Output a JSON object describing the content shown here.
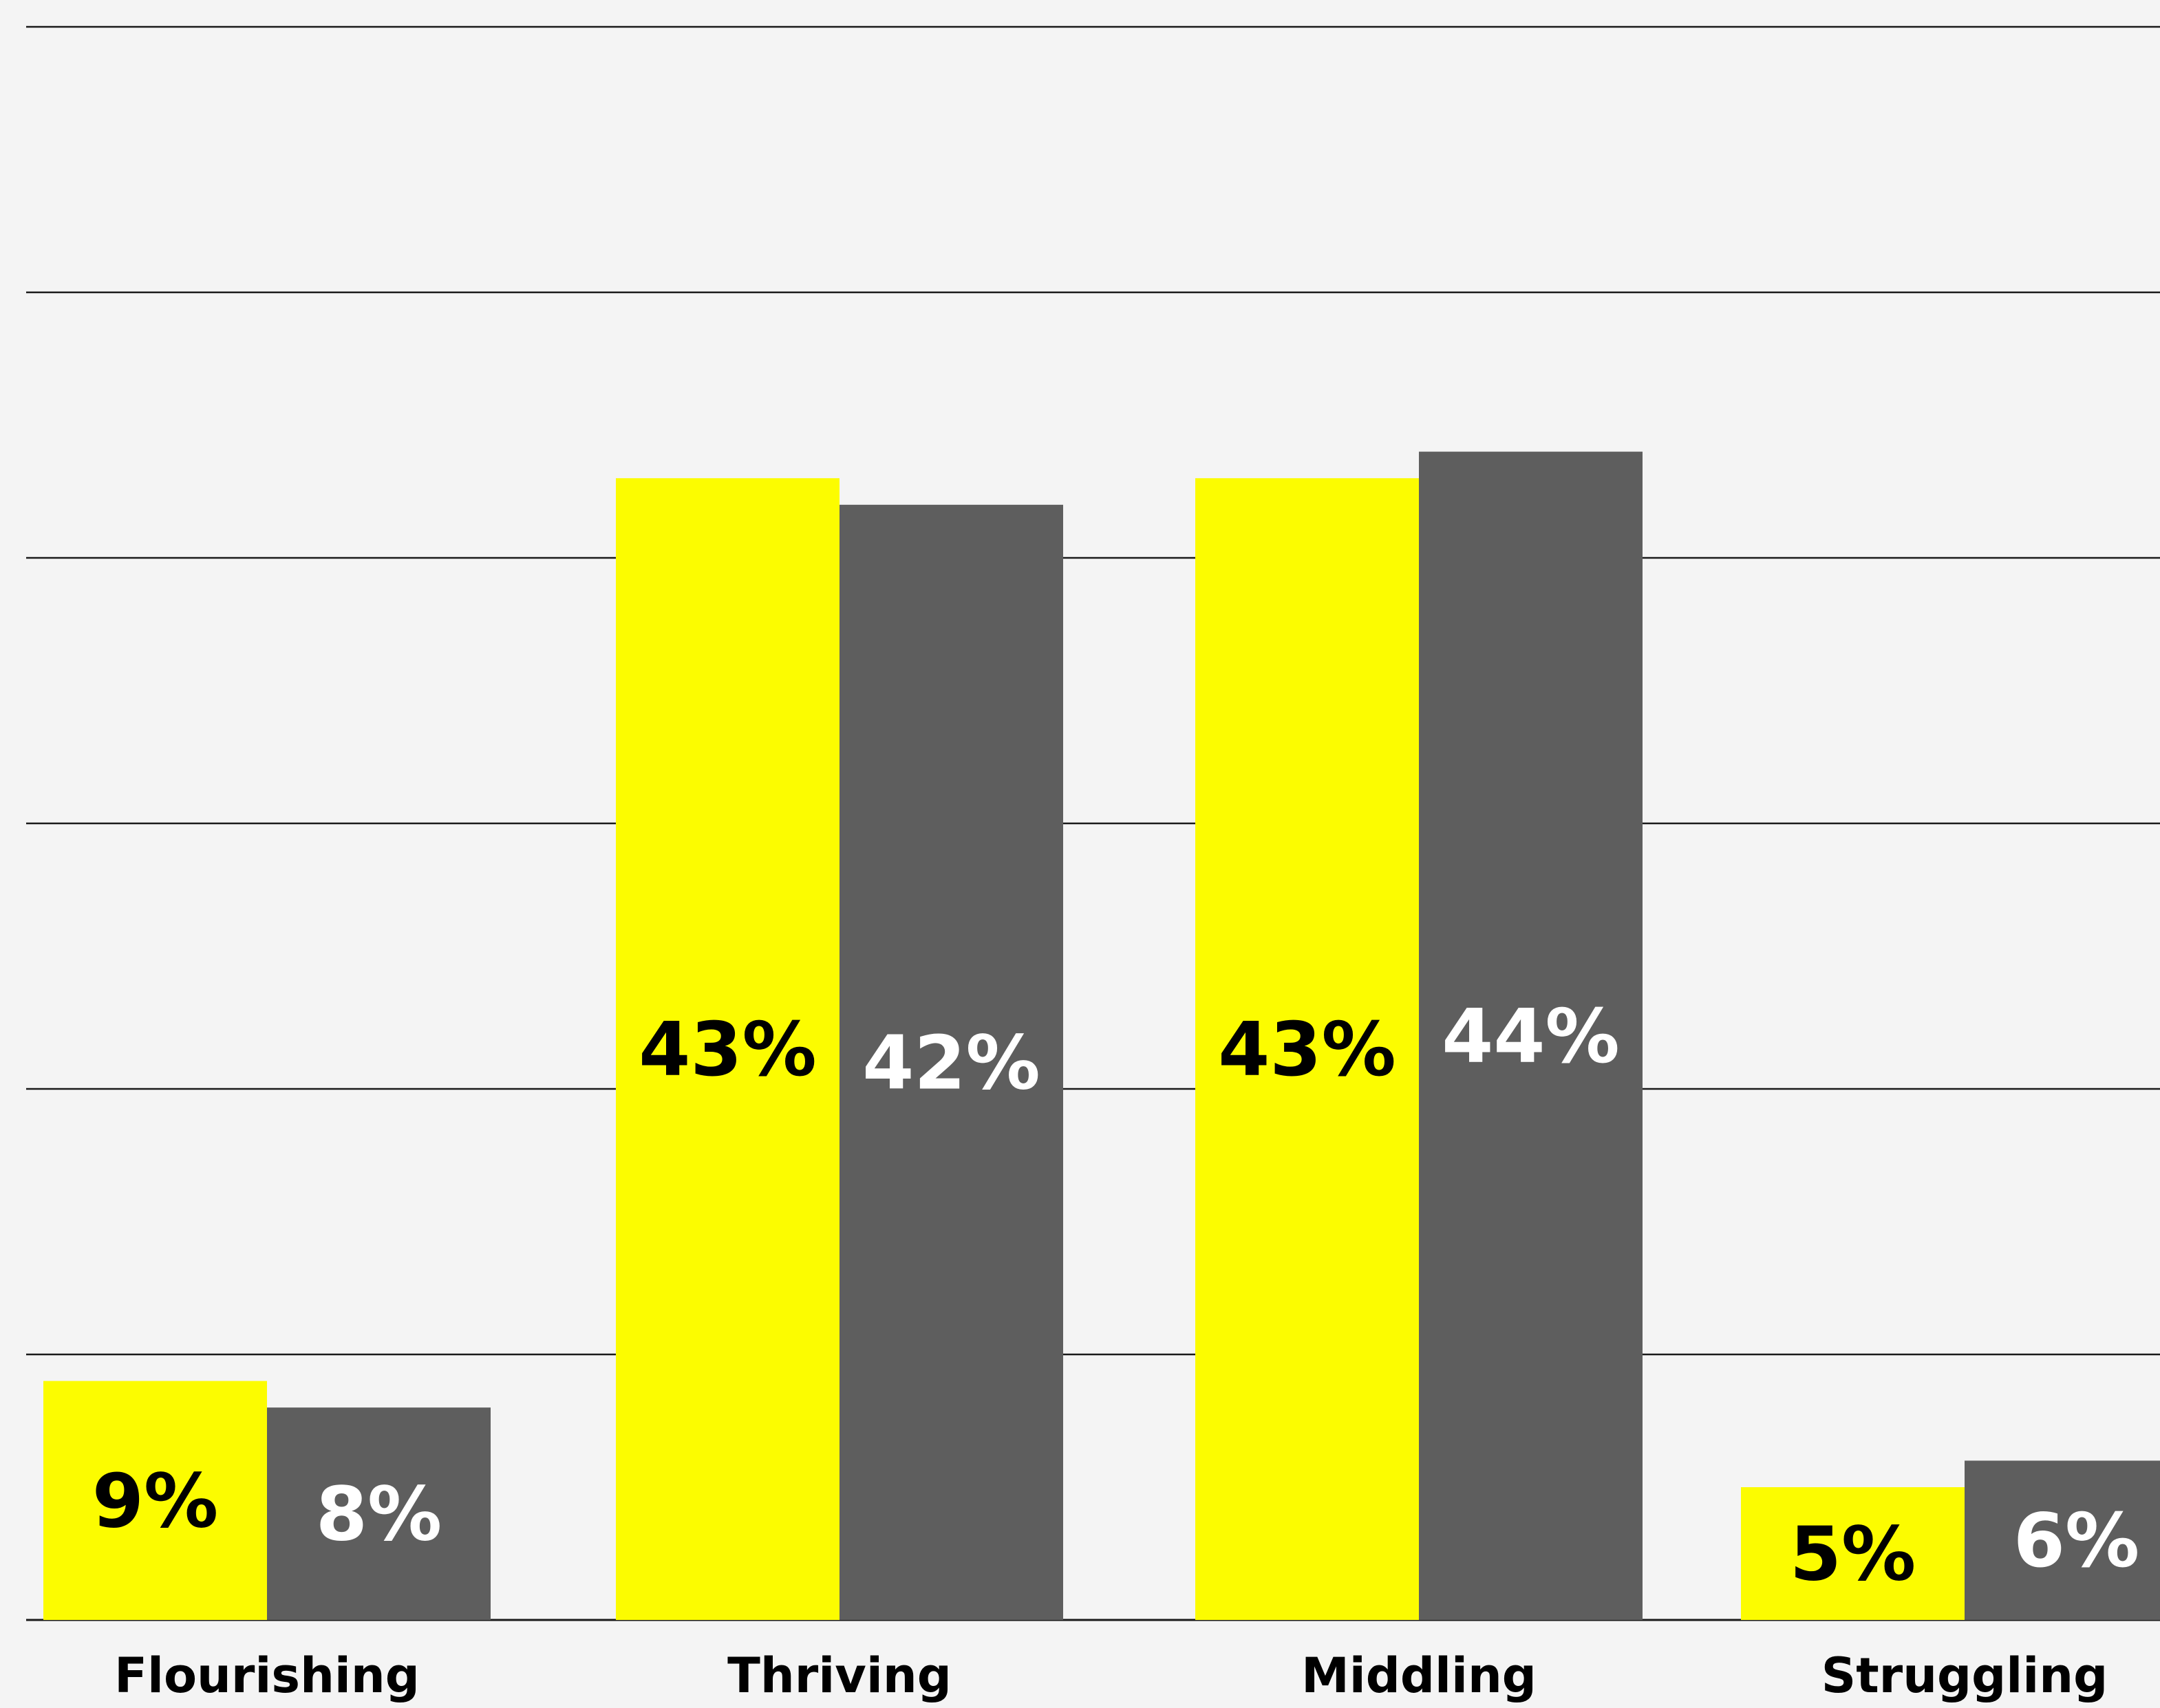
{
  "chart_data": {
    "type": "bar",
    "categories": [
      "Flourishing",
      "Thriving",
      "Middling",
      "Struggling"
    ],
    "series": [
      {
        "values": [
          9,
          43,
          43,
          5
        ],
        "color": "#fcfc00",
        "label_color": "#000000"
      },
      {
        "values": [
          8,
          42,
          44,
          6
        ],
        "color": "#5e5e5e",
        "label_color": "#ffffff"
      }
    ],
    "data_labels": [
      [
        "9%",
        "43%",
        "43%",
        "5%"
      ],
      [
        "8%",
        "42%",
        "44%",
        "6%"
      ]
    ],
    "ylim": [
      0,
      60
    ],
    "grid": true,
    "background": "#f4f4f4"
  }
}
